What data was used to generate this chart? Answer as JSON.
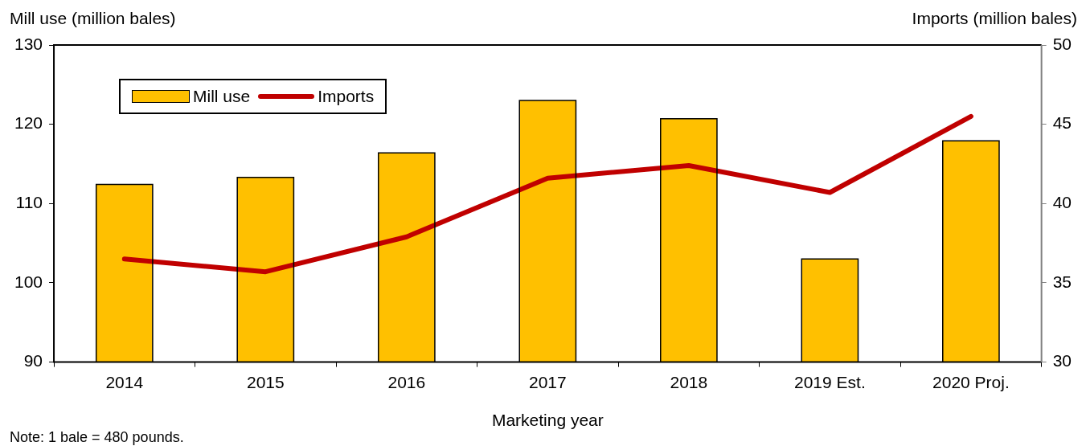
{
  "chart_data": {
    "type": "bar",
    "xlabel": "Marketing year",
    "ylabel": "Mill use (million bales)",
    "y2label": "Imports (million bales)",
    "categories": [
      "2014",
      "2015",
      "2016",
      "2017",
      "2018",
      "2019 Est.",
      "2020 Proj."
    ],
    "series": [
      {
        "name": "Mill use",
        "color": "#ffc000",
        "values": [
          112.4,
          113.3,
          116.4,
          123.0,
          120.7,
          103.0,
          117.9
        ]
      },
      {
        "name": "Imports",
        "type": "line",
        "axis": "y2",
        "color": "#c00000",
        "values": [
          36.5,
          35.7,
          37.9,
          41.6,
          42.4,
          40.7,
          45.5
        ]
      }
    ],
    "ylim": [
      90,
      130
    ],
    "yticks": [
      90,
      100,
      110,
      120,
      130
    ],
    "y2lim": [
      30,
      50
    ],
    "y2ticks": [
      30,
      35,
      40,
      45,
      50
    ],
    "legend": "top left",
    "grid": false,
    "marker": "none",
    "line_style": "solid",
    "annotations": [
      "Note: 1 bale = 480 pounds."
    ]
  }
}
